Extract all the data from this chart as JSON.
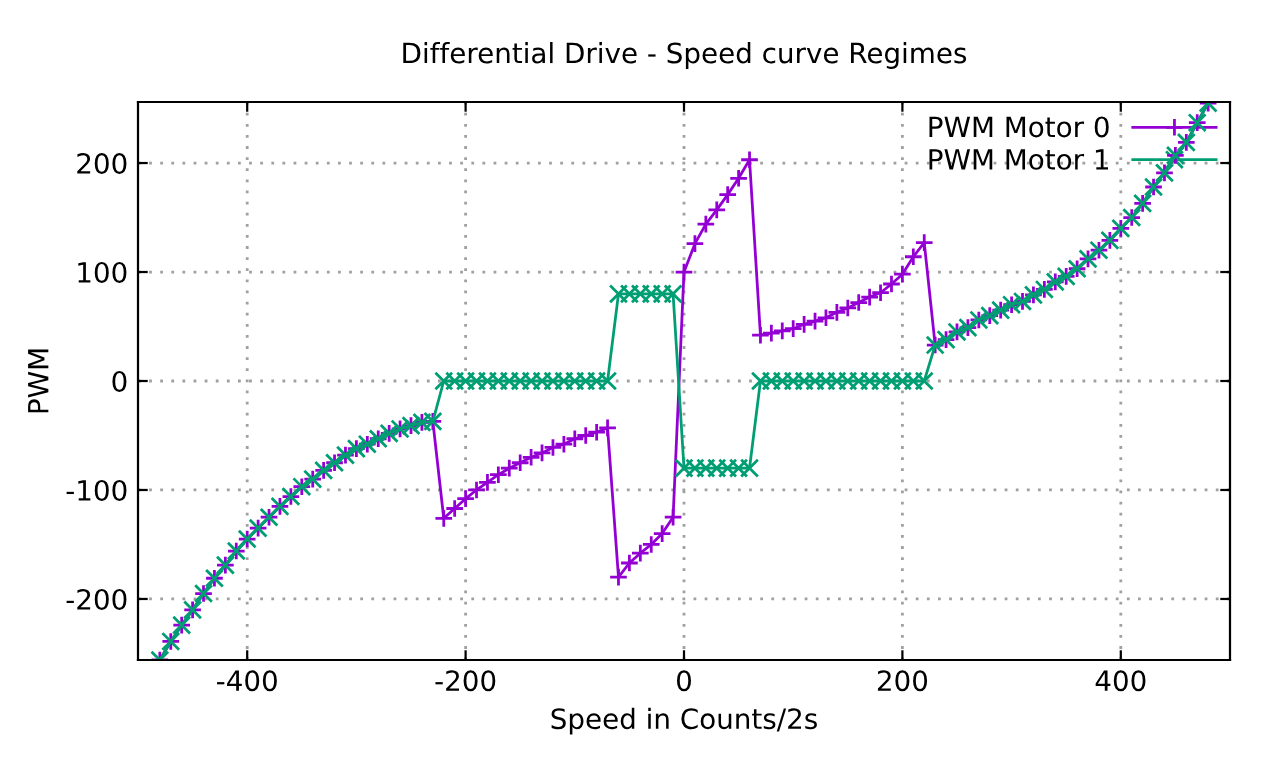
{
  "chart_data": {
    "type": "line",
    "title": "Differential Drive - Speed curve Regimes",
    "xlabel": "Speed in Counts/2s",
    "ylabel": "PWM",
    "x": [
      -480,
      -470,
      -460,
      -450,
      -440,
      -430,
      -420,
      -410,
      -400,
      -390,
      -380,
      -370,
      -360,
      -350,
      -340,
      -330,
      -320,
      -310,
      -300,
      -290,
      -280,
      -270,
      -260,
      -250,
      -240,
      -230,
      -220,
      -210,
      -200,
      -190,
      -180,
      -170,
      -160,
      -150,
      -140,
      -130,
      -120,
      -110,
      -100,
      -90,
      -80,
      -70,
      -60,
      -50,
      -40,
      -30,
      -20,
      -10,
      0,
      10,
      20,
      30,
      40,
      50,
      60,
      70,
      80,
      90,
      100,
      110,
      120,
      130,
      140,
      150,
      160,
      170,
      180,
      190,
      200,
      210,
      220,
      230,
      240,
      250,
      260,
      270,
      280,
      290,
      300,
      310,
      320,
      330,
      340,
      350,
      360,
      370,
      380,
      390,
      400,
      410,
      420,
      430,
      440,
      450,
      460,
      470,
      480
    ],
    "series": [
      {
        "name": "PWM Motor 0",
        "color": "#9400d3",
        "marker": "plus",
        "values": [
          -256,
          -239,
          -224,
          -210,
          -195,
          -181,
          -169,
          -156,
          -145,
          -135,
          -125,
          -115,
          -106,
          -97,
          -90,
          -82,
          -75,
          -68,
          -62,
          -58,
          -53,
          -48,
          -44,
          -41,
          -38,
          -37,
          -126,
          -117,
          -108,
          -100,
          -93,
          -86,
          -80,
          -75,
          -70,
          -66,
          -61,
          -58,
          -53,
          -50,
          -47,
          -43,
          -180,
          -167,
          -158,
          -150,
          -140,
          -125,
          100,
          126,
          144,
          157,
          171,
          186,
          203,
          42,
          44,
          46,
          48,
          52,
          55,
          58,
          63,
          67,
          72,
          77,
          81,
          89,
          98,
          114,
          127,
          33,
          38,
          45,
          49,
          56,
          60,
          65,
          70,
          73,
          79,
          84,
          91,
          96,
          103,
          112,
          120,
          129,
          140,
          150,
          163,
          178,
          191,
          207,
          219,
          237,
          255
        ]
      },
      {
        "name": "PWM Motor 1",
        "color": "#009e73",
        "marker": "cross",
        "values": [
          -256,
          -239,
          -224,
          -210,
          -195,
          -181,
          -169,
          -156,
          -145,
          -135,
          -125,
          -115,
          -106,
          -97,
          -90,
          -82,
          -75,
          -68,
          -62,
          -58,
          -53,
          -48,
          -44,
          -41,
          -38,
          -37,
          0,
          0,
          0,
          0,
          0,
          0,
          0,
          0,
          0,
          0,
          0,
          0,
          0,
          0,
          0,
          0,
          80,
          80,
          80,
          80,
          80,
          80,
          -80,
          -80,
          -80,
          -80,
          -80,
          -80,
          -80,
          0,
          0,
          0,
          0,
          0,
          0,
          0,
          0,
          0,
          0,
          0,
          0,
          0,
          0,
          0,
          0,
          33,
          38,
          45,
          49,
          56,
          60,
          65,
          70,
          73,
          79,
          84,
          91,
          96,
          103,
          112,
          120,
          129,
          140,
          150,
          163,
          178,
          191,
          207,
          219,
          237,
          255
        ]
      }
    ],
    "xlim": [
      -500,
      500
    ],
    "xticks": [
      -400,
      -200,
      0,
      200,
      400
    ],
    "ylim": [
      -256,
      256
    ],
    "yticks": [
      -200,
      -100,
      0,
      100,
      200
    ],
    "grid": true,
    "legend": "top right",
    "line_style": "solid"
  }
}
